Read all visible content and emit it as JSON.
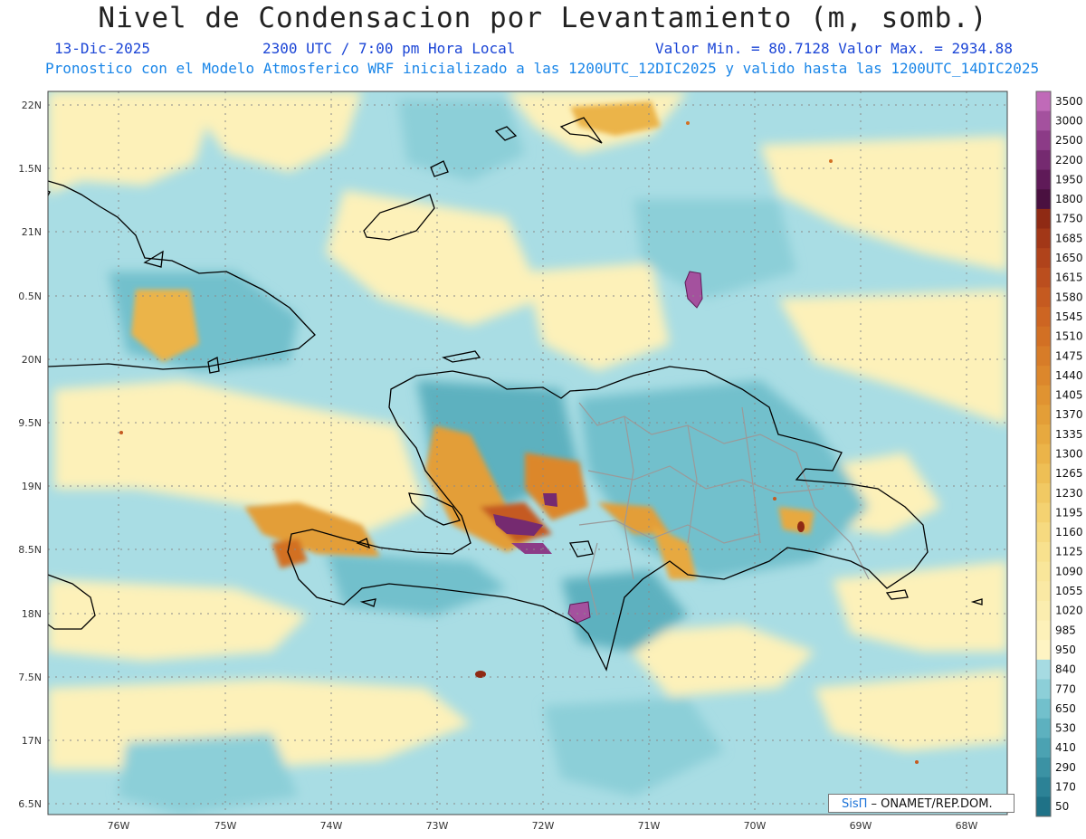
{
  "title": "Nivel de Condensacion por Levantamiento (m, somb.)",
  "date": "13-Dic-2025",
  "time": "2300 UTC / 7:00 pm Hora Local",
  "min_max": "Valor Min. = 80.7128  Valor Max. = 2934.88",
  "model_info": "Pronostico con el Modelo Atmosferico WRF inicializado a las 1200UTC_12DIC2025 y valido hasta las  1200UTC_14DIC2025",
  "credit_logo": "SisΠ",
  "credit_text": " – ONAMET/REP.DOM.",
  "lat_labels": [
    "22N",
    "1.5N",
    "21N",
    "0.5N",
    "20N",
    "9.5N",
    "19N",
    "8.5N",
    "18N",
    "7.5N",
    "17N",
    "6.5N"
  ],
  "lon_labels": [
    "76W",
    "75W",
    "74W",
    "73W",
    "72W",
    "71W",
    "70W",
    "69W",
    "68W"
  ],
  "colorbar": {
    "labels": [
      "3500",
      "3000",
      "2500",
      "2200",
      "1950",
      "1800",
      "1750",
      "1685",
      "1650",
      "1615",
      "1580",
      "1545",
      "1510",
      "1475",
      "1440",
      "1405",
      "1370",
      "1335",
      "1300",
      "1265",
      "1230",
      "1195",
      "1160",
      "1125",
      "1090",
      "1055",
      "1020",
      "985",
      "950",
      "840",
      "770",
      "650",
      "530",
      "410",
      "290",
      "170",
      "50"
    ],
    "colors": [
      "#c06ab8",
      "#a4519e",
      "#8c3b87",
      "#752a70",
      "#5f1a58",
      "#4a1040",
      "#8f2a14",
      "#a23717",
      "#b0431b",
      "#bb4e1e",
      "#c55a20",
      "#cd6522",
      "#d27024",
      "#d77c28",
      "#dc872c",
      "#e09331",
      "#e39e37",
      "#e7a93f",
      "#ebb449",
      "#eebf55",
      "#f1c963",
      "#f4d271",
      "#f6da80",
      "#f8e18e",
      "#f9e69a",
      "#fae9a4",
      "#fbedaf",
      "#fdf1b9",
      "#fef4c3",
      "#a6dbe2",
      "#8ccfd8",
      "#72c0cc",
      "#5db1bf",
      "#4ba2b2",
      "#3b92a4",
      "#2c8296",
      "#1f7287"
    ]
  }
}
